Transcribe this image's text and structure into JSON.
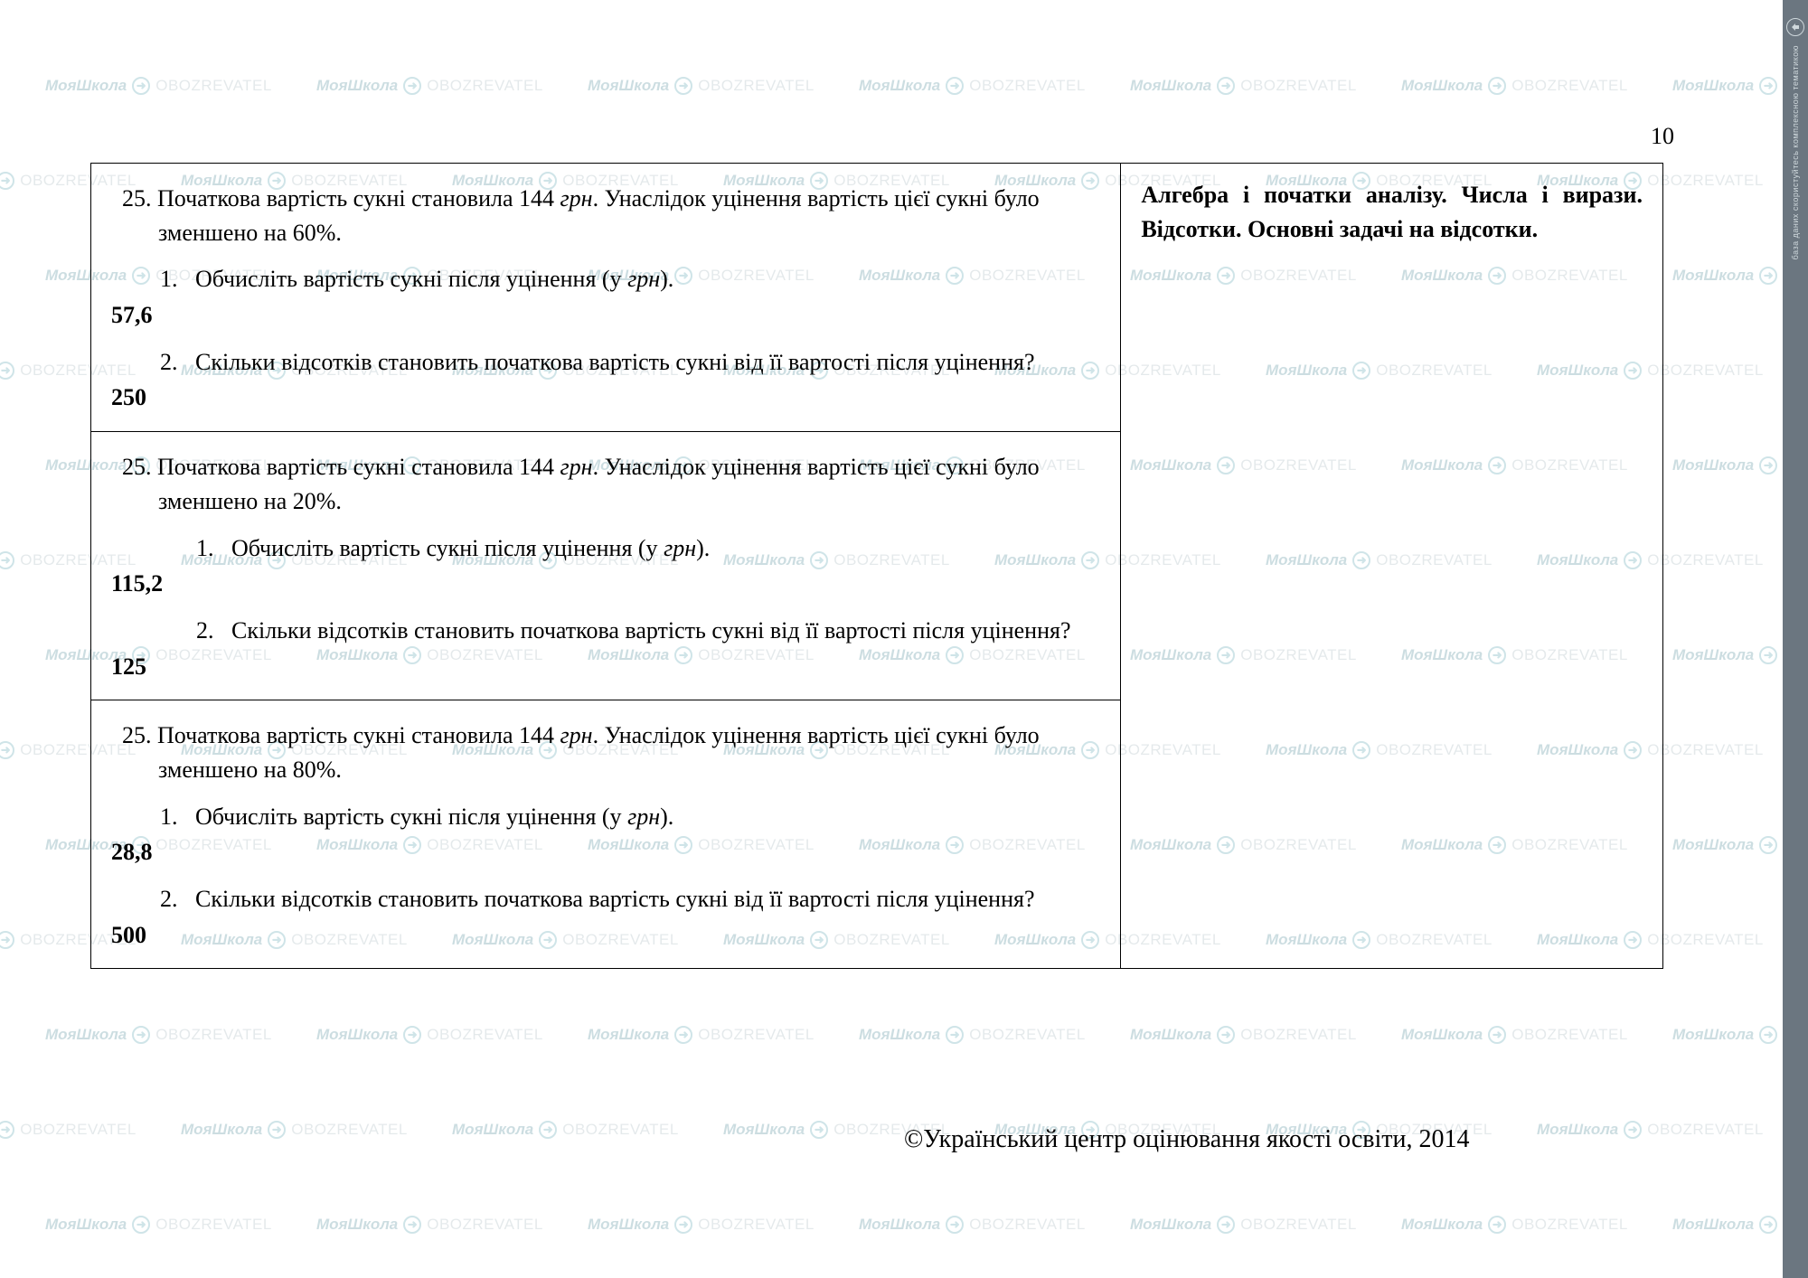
{
  "page_number": "10",
  "watermark": {
    "word1": "МояШкола",
    "word2": "OBOZREVATEL",
    "glyph": "➜"
  },
  "right_strip": {
    "text": "база даних скористуйтесь комплексною тематикою"
  },
  "footer": "©Український центр оцінювання якості освіти, 2014",
  "category_heading": "Алгебра і початки аналізу.  Числа і вирази. Відсотки. Основні задачі на відсотки.",
  "currency": "грн",
  "problems": [
    {
      "num": "25.",
      "intro_a": "Початкова вартість сукні становила 144 ",
      "intro_b": ". Унаслідок уцінення вартість цієї сукні було зменшено на 60%.",
      "sub1_num": "1.",
      "sub1_text_a": "Обчисліть вартість сукні після уцінення (у ",
      "sub1_text_b": ").",
      "ans1": "57,6",
      "sub2_num": "2.",
      "sub2_text": "Скільки відсотків становить початкова вартість  сукні  від її  вартості після уцінення?",
      "ans2": "250"
    },
    {
      "num": "25.",
      "intro_a": "Початкова вартість сукні становила 144 ",
      "intro_b": ". Унаслідок уцінення вартість цієї сукні було зменшено на 20%.",
      "sub1_num": "1.",
      "sub1_text_a": "Обчисліть вартість сукні після уцінення (у ",
      "sub1_text_b": ").",
      "ans1": "115,2",
      "sub2_num": "2.",
      "sub2_text": "Скільки відсотків становить початкова вартість  сукні  від її  вартості після уцінення?",
      "ans2": "125"
    },
    {
      "num": "25.",
      "intro_a": "Початкова вартість сукні становила 144 ",
      "intro_b": ". Унаслідок уцінення вартість цієї сукні було зменшено на 80%.",
      "sub1_num": "1.",
      "sub1_text_a": "Обчисліть вартість сукні після уцінення (у ",
      "sub1_text_b": ").",
      "ans1": "28,8",
      "sub2_num": "2.",
      "sub2_text": "Скільки відсотків становить початкова вартість  сукні  від її  вартості після уцінення?",
      "ans2": "500"
    }
  ],
  "layout": {
    "watermark_rows": 14,
    "watermark_cols": 8,
    "watermark_x_gap": 300,
    "watermark_y_gap": 105,
    "watermark_x_offset_odd": 150
  }
}
